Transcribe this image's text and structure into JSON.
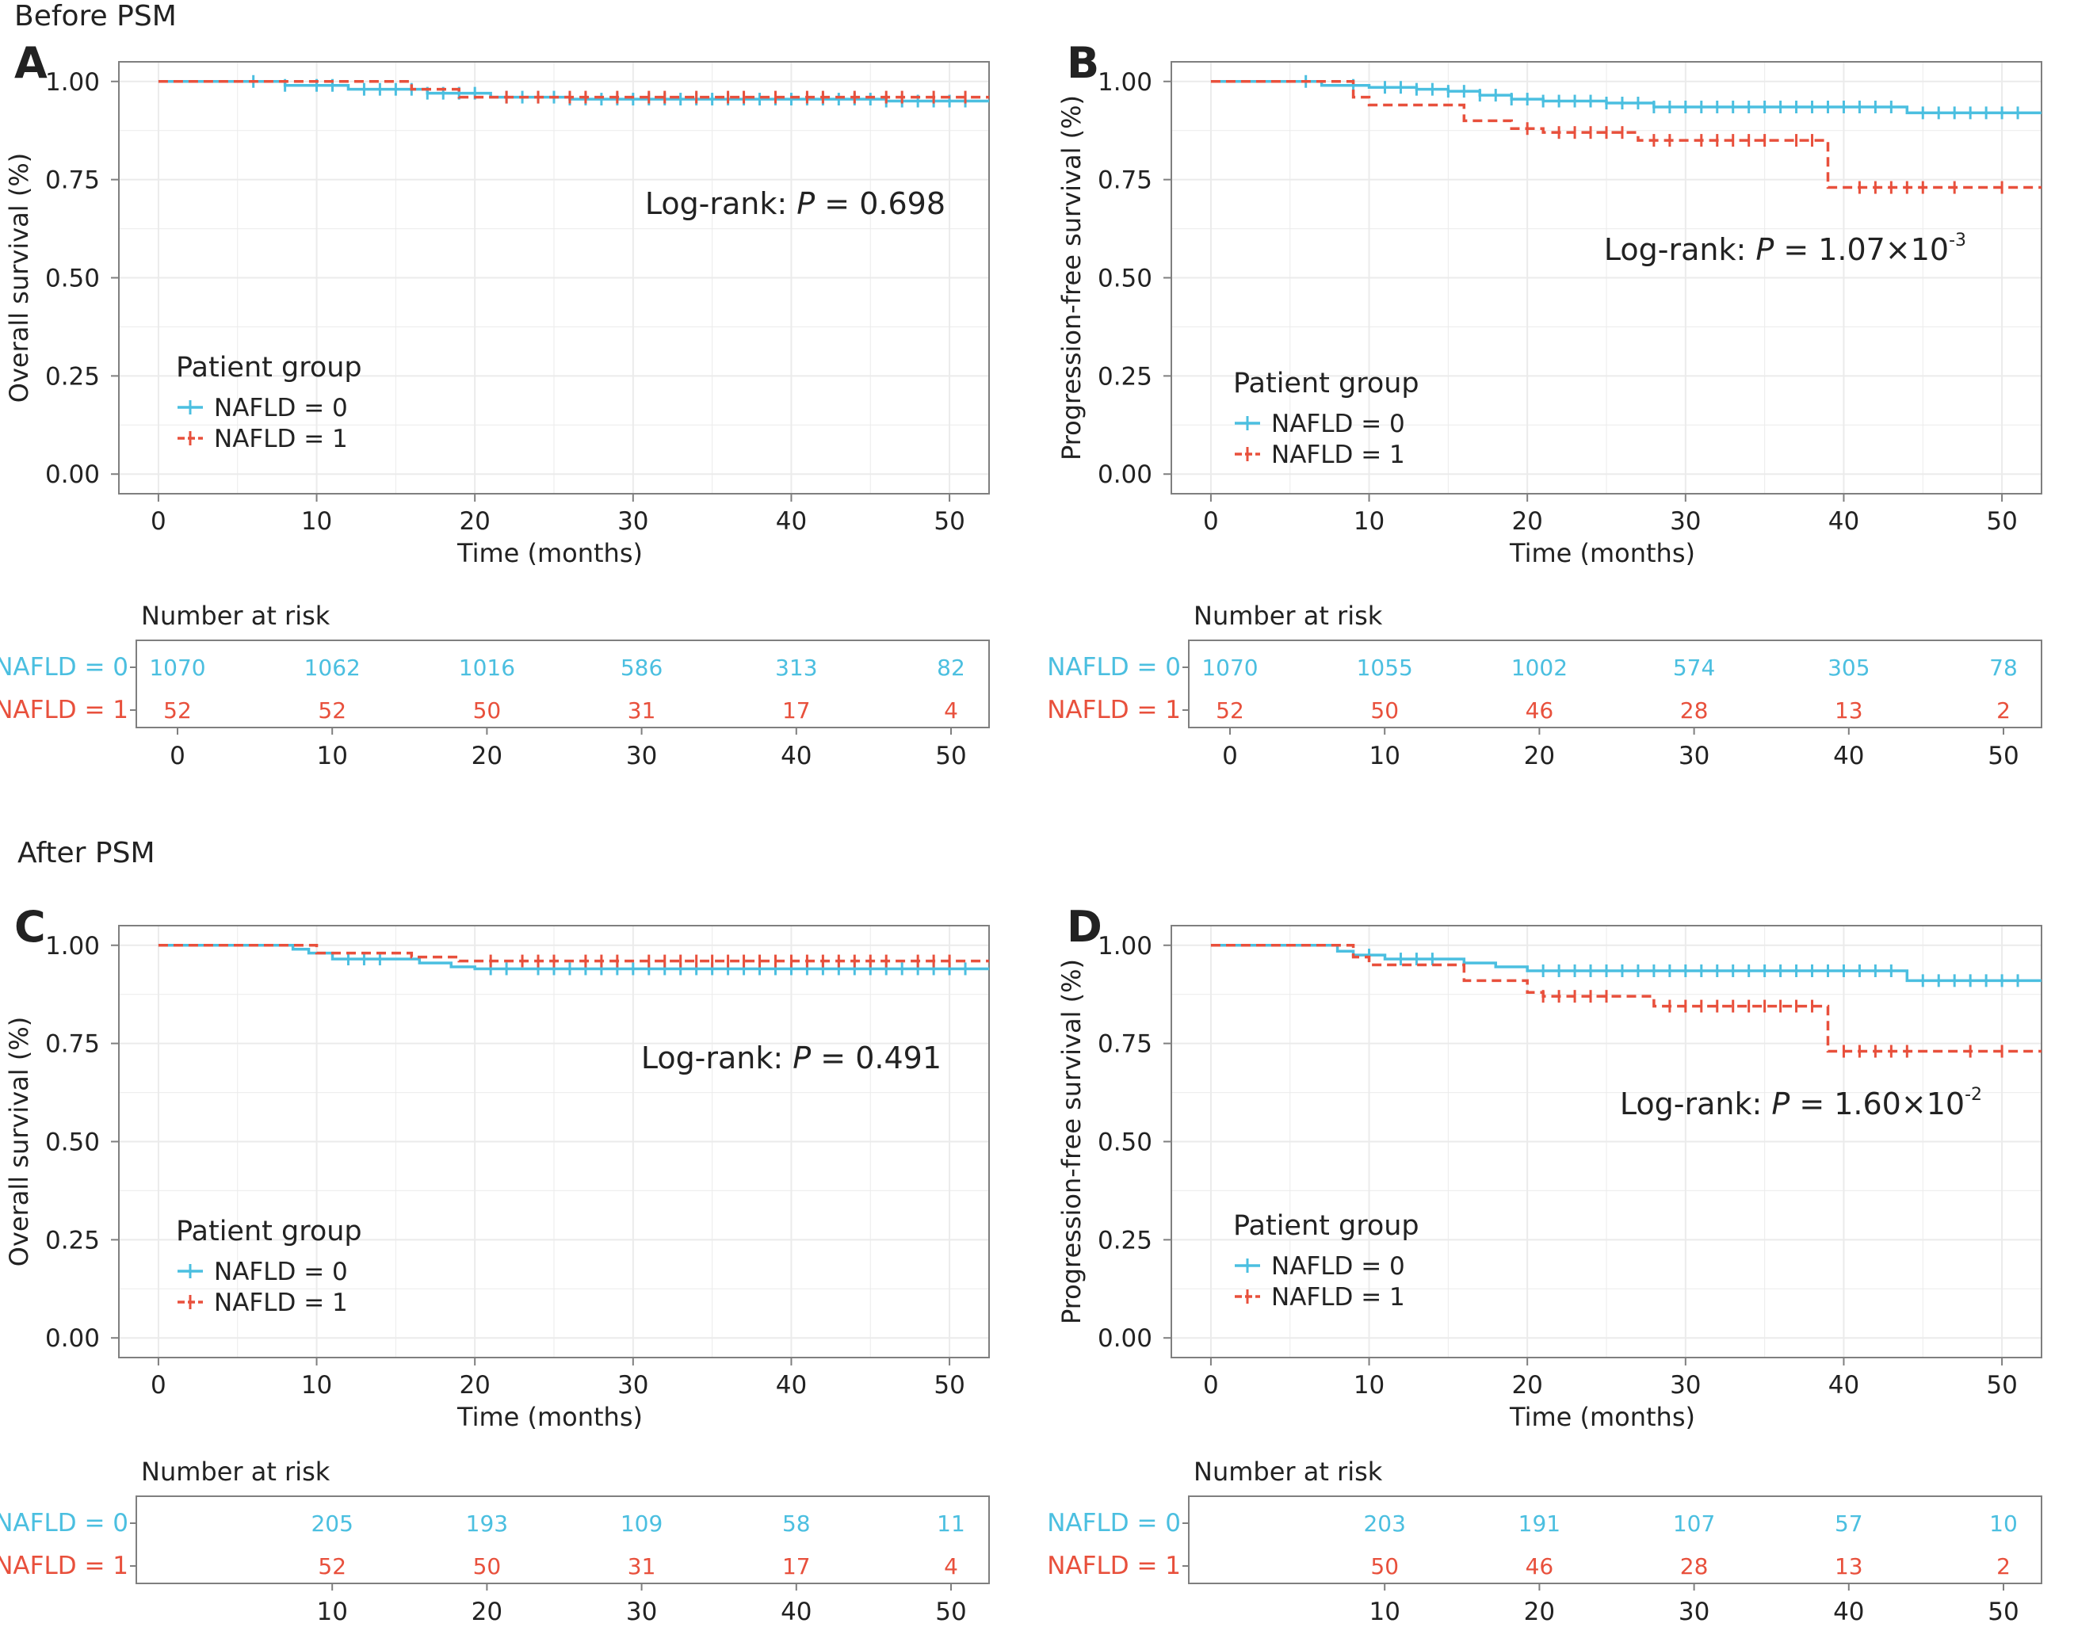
{
  "figure": {
    "section_before": "Before PSM",
    "section_after": "After PSM",
    "panel_labels": [
      "A",
      "B",
      "C",
      "D"
    ]
  },
  "colors": {
    "nafld0": "#4BBFE0",
    "nafld1": "#E8503C",
    "grid": "#EBEBEB",
    "axis": "#7F7F7F",
    "text": "#222222"
  },
  "chart_data": [
    {
      "type": "line",
      "panel": "A",
      "xlabel": "Time (months)",
      "ylabel": "Overall survival (%)",
      "xlim": [
        -2.5,
        52.5
      ],
      "ylim": [
        -0.05,
        1.05
      ],
      "x_ticks": [
        0,
        10,
        20,
        30,
        40,
        50
      ],
      "y_ticks": [
        0.0,
        0.25,
        0.5,
        0.75,
        1.0
      ],
      "y_tick_labels": [
        "0.00",
        "0.25",
        "0.50",
        "0.75",
        "1.00"
      ],
      "grid": true,
      "annotation": {
        "prefix": "Log-rank: ",
        "italic": "P",
        "mid": " = ",
        "value": "0.698",
        "exponent": ""
      },
      "legend": {
        "title": "Patient group",
        "placement": "bottom-left",
        "entries": [
          "NAFLD = 0",
          "NAFLD = 1"
        ]
      },
      "series": [
        {
          "name": "NAFLD = 0",
          "style": "solid",
          "steps": [
            [
              0,
              1.0
            ],
            [
              8,
              0.99
            ],
            [
              12,
              0.98
            ],
            [
              17,
              0.97
            ],
            [
              21,
              0.96
            ],
            [
              26,
              0.955
            ],
            [
              46,
              0.95
            ]
          ],
          "censors": [
            6,
            8,
            10,
            11,
            13,
            14,
            15,
            16,
            17,
            18,
            19,
            20,
            22,
            23,
            24,
            25,
            26,
            27,
            28,
            29,
            30,
            31,
            32,
            33,
            34,
            35,
            36,
            37,
            38,
            39,
            40,
            41,
            42,
            43,
            44,
            45,
            46,
            47,
            48,
            49,
            50,
            51
          ]
        },
        {
          "name": "NAFLD = 1",
          "style": "dashed",
          "steps": [
            [
              0,
              1.0
            ],
            [
              16,
              0.98
            ],
            [
              19,
              0.96
            ]
          ],
          "censors": [
            22,
            24,
            26,
            27,
            29,
            31,
            32,
            34,
            36,
            37,
            39,
            41,
            42,
            44,
            46,
            47,
            49,
            51
          ]
        }
      ],
      "risk_table": {
        "title": "Number at risk",
        "row_labels": [
          "NAFLD = 0",
          "NAFLD = 1"
        ],
        "times": [
          0,
          10,
          20,
          30,
          40,
          50
        ],
        "rows": [
          [
            "1070",
            "1062",
            "1016",
            "586",
            "313",
            "82"
          ],
          [
            "52",
            "52",
            "50",
            "31",
            "17",
            "4"
          ]
        ]
      }
    },
    {
      "type": "line",
      "panel": "B",
      "xlabel": "Time (months)",
      "ylabel": "Progression-free survival (%)",
      "xlim": [
        -2.5,
        52.5
      ],
      "ylim": [
        -0.05,
        1.05
      ],
      "x_ticks": [
        0,
        10,
        20,
        30,
        40,
        50
      ],
      "y_ticks": [
        0.0,
        0.25,
        0.5,
        0.75,
        1.0
      ],
      "y_tick_labels": [
        "0.00",
        "0.25",
        "0.50",
        "0.75",
        "1.00"
      ],
      "grid": true,
      "annotation": {
        "prefix": "Log-rank: ",
        "italic": "P",
        "mid": " = ",
        "value": "1.07×10",
        "exponent": "-3"
      },
      "legend": {
        "title": "Patient group",
        "placement": "bottom-left",
        "entries": [
          "NAFLD = 0",
          "NAFLD = 1"
        ]
      },
      "series": [
        {
          "name": "NAFLD = 0",
          "style": "solid",
          "steps": [
            [
              0,
              1.0
            ],
            [
              7,
              0.99
            ],
            [
              10,
              0.985
            ],
            [
              13,
              0.98
            ],
            [
              15,
              0.975
            ],
            [
              17,
              0.965
            ],
            [
              19,
              0.955
            ],
            [
              21,
              0.95
            ],
            [
              25,
              0.945
            ],
            [
              28,
              0.935
            ],
            [
              44,
              0.92
            ]
          ],
          "censors": [
            6,
            9,
            11,
            12,
            13,
            14,
            15,
            16,
            17,
            18,
            19,
            20,
            21,
            22,
            23,
            24,
            25,
            26,
            27,
            28,
            29,
            30,
            31,
            32,
            33,
            34,
            35,
            36,
            37,
            38,
            39,
            40,
            41,
            42,
            43,
            45,
            46,
            47,
            48,
            49,
            50,
            51
          ]
        },
        {
          "name": "NAFLD = 1",
          "style": "dashed",
          "steps": [
            [
              0,
              1.0
            ],
            [
              9,
              0.96
            ],
            [
              10,
              0.94
            ],
            [
              16,
              0.9
            ],
            [
              19,
              0.88
            ],
            [
              21,
              0.87
            ],
            [
              27,
              0.85
            ],
            [
              39,
              0.73
            ]
          ],
          "censors": [
            20,
            22,
            23,
            24,
            25,
            26,
            28,
            29,
            31,
            32,
            33,
            34,
            35,
            37,
            38,
            41,
            42,
            43,
            44,
            45,
            47,
            50
          ]
        }
      ],
      "risk_table": {
        "title": "Number at risk",
        "row_labels": [
          "NAFLD = 0",
          "NAFLD = 1"
        ],
        "times": [
          0,
          10,
          20,
          30,
          40,
          50
        ],
        "rows": [
          [
            "1070",
            "1055",
            "1002",
            "574",
            "305",
            "78"
          ],
          [
            "52",
            "50",
            "46",
            "28",
            "13",
            "2"
          ]
        ]
      }
    },
    {
      "type": "line",
      "panel": "C",
      "xlabel": "Time (months)",
      "ylabel": "Overall survival (%)",
      "xlim": [
        -2.5,
        52.5
      ],
      "ylim": [
        -0.05,
        1.05
      ],
      "x_ticks": [
        0,
        10,
        20,
        30,
        40,
        50
      ],
      "y_ticks": [
        0.0,
        0.25,
        0.5,
        0.75,
        1.0
      ],
      "y_tick_labels": [
        "0.00",
        "0.25",
        "0.50",
        "0.75",
        "1.00"
      ],
      "grid": true,
      "annotation": {
        "prefix": "Log-rank: ",
        "italic": "P",
        "mid": " = ",
        "value": "0.491",
        "exponent": ""
      },
      "legend": {
        "title": "Patient group",
        "placement": "bottom-left",
        "entries": [
          "NAFLD = 0",
          "NAFLD = 1"
        ]
      },
      "series": [
        {
          "name": "NAFLD = 0",
          "style": "solid",
          "steps": [
            [
              0,
              1.0
            ],
            [
              8.5,
              0.99
            ],
            [
              9.5,
              0.98
            ],
            [
              11,
              0.965
            ],
            [
              16.5,
              0.955
            ],
            [
              18.5,
              0.945
            ],
            [
              20,
              0.94
            ]
          ],
          "censors": [
            12,
            13,
            14,
            21,
            22,
            24,
            25,
            26,
            27,
            28,
            29,
            30,
            31,
            32,
            33,
            34,
            35,
            36,
            37,
            38,
            39,
            40,
            41,
            42,
            43,
            44,
            45,
            46,
            47,
            48,
            49,
            50,
            51
          ]
        },
        {
          "name": "NAFLD = 1",
          "style": "dashed",
          "steps": [
            [
              0,
              1.0
            ],
            [
              10,
              0.98
            ],
            [
              16,
              0.97
            ],
            [
              19,
              0.96
            ]
          ],
          "censors": [
            21,
            23,
            24,
            25,
            27,
            28,
            29,
            31,
            32,
            33,
            34,
            35,
            36,
            37,
            38,
            39,
            40,
            41,
            42,
            43,
            44,
            45,
            46,
            48,
            49,
            50
          ]
        }
      ],
      "risk_table": {
        "title": "Number at risk",
        "row_labels": [
          "NAFLD = 0",
          "NAFLD = 1"
        ],
        "times": [
          10,
          20,
          30,
          40,
          50
        ],
        "rows": [
          [
            "205",
            "193",
            "109",
            "58",
            "11"
          ],
          [
            "52",
            "50",
            "31",
            "17",
            "4"
          ]
        ]
      }
    },
    {
      "type": "line",
      "panel": "D",
      "xlabel": "Time (months)",
      "ylabel": "Progression-free survival (%)",
      "xlim": [
        -2.5,
        52.5
      ],
      "ylim": [
        -0.05,
        1.05
      ],
      "x_ticks": [
        0,
        10,
        20,
        30,
        40,
        50
      ],
      "y_ticks": [
        0.0,
        0.25,
        0.5,
        0.75,
        1.0
      ],
      "y_tick_labels": [
        "0.00",
        "0.25",
        "0.50",
        "0.75",
        "1.00"
      ],
      "grid": true,
      "annotation": {
        "prefix": "Log-rank: ",
        "italic": "P",
        "mid": " = ",
        "value": "1.60×10",
        "exponent": "-2"
      },
      "legend": {
        "title": "Patient group",
        "placement": "bottom-left",
        "entries": [
          "NAFLD = 0",
          "NAFLD = 1"
        ]
      },
      "series": [
        {
          "name": "NAFLD = 0",
          "style": "solid",
          "steps": [
            [
              0,
              1.0
            ],
            [
              8,
              0.985
            ],
            [
              9,
              0.975
            ],
            [
              11,
              0.965
            ],
            [
              16,
              0.955
            ],
            [
              18,
              0.945
            ],
            [
              20,
              0.935
            ],
            [
              44,
              0.91
            ]
          ],
          "censors": [
            10,
            12,
            13,
            14,
            21,
            22,
            23,
            24,
            25,
            26,
            27,
            28,
            29,
            30,
            31,
            32,
            33,
            34,
            35,
            36,
            37,
            38,
            39,
            40,
            41,
            42,
            43,
            45,
            46,
            47,
            48,
            49,
            50,
            51
          ]
        },
        {
          "name": "NAFLD = 1",
          "style": "dashed",
          "steps": [
            [
              0,
              1.0
            ],
            [
              9,
              0.97
            ],
            [
              10,
              0.95
            ],
            [
              16,
              0.91
            ],
            [
              20,
              0.88
            ],
            [
              21,
              0.87
            ],
            [
              28,
              0.845
            ],
            [
              39,
              0.73
            ]
          ],
          "censors": [
            21,
            22,
            23,
            24,
            25,
            29,
            30,
            31,
            32,
            33,
            34,
            35,
            36,
            37,
            38,
            40,
            41,
            42,
            43,
            44,
            48,
            50
          ]
        }
      ],
      "risk_table": {
        "title": "Number at risk",
        "row_labels": [
          "NAFLD = 0",
          "NAFLD = 1"
        ],
        "times": [
          10,
          20,
          30,
          40,
          50
        ],
        "rows": [
          [
            "203",
            "191",
            "107",
            "57",
            "10"
          ],
          [
            "50",
            "46",
            "28",
            "13",
            "2"
          ]
        ]
      }
    }
  ]
}
